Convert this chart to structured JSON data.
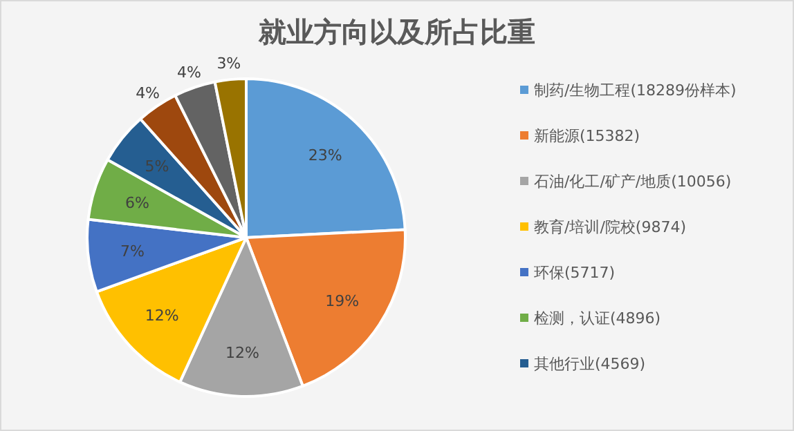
{
  "chart_data": {
    "type": "pie",
    "title": "就业方向以及所占比重",
    "categories": [
      "制药/生物工程(18289份样本)",
      "新能源(15382)",
      "石油/化工/矿产/地质(10056)",
      "教育/培训/院校(9874)",
      "环保(5717)",
      "检测，认证(4896)",
      "其他行业(4569)",
      null,
      null,
      null
    ],
    "values": [
      23,
      19,
      12,
      12,
      7,
      6,
      5,
      4,
      4,
      3
    ],
    "value_labels": [
      "23%",
      "19%",
      "12%",
      "12%",
      "7%",
      "6%",
      "5%",
      "4%",
      "4%",
      "3%"
    ],
    "colors": [
      "#5b9bd5",
      "#ed7d31",
      "#a5a5a5",
      "#ffc000",
      "#4472c4",
      "#70ad47",
      "#255e91",
      "#9e480e",
      "#636363",
      "#997300"
    ],
    "legend": "right"
  }
}
